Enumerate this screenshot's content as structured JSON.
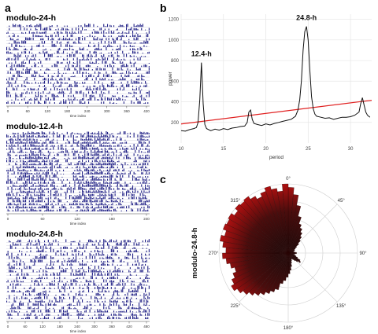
{
  "panels": {
    "a": "a",
    "b": "b",
    "c": "c"
  },
  "actograms": [
    {
      "title": "modulo-24-h",
      "xlabel": "time index",
      "ticks": [
        "0",
        "60",
        "120",
        "180",
        "240",
        "300",
        "360",
        "420"
      ],
      "bar_color": "#1f1f85"
    },
    {
      "title": "modulo-12.4-h",
      "xlabel": "time index",
      "ticks": [
        "0",
        "60",
        "120",
        "180",
        "240"
      ],
      "bar_color": "#1f1f85"
    },
    {
      "title": "modulo-24.8-h",
      "xlabel": "time index",
      "ticks": [
        "0",
        "60",
        "120",
        "180",
        "240",
        "300",
        "360",
        "420",
        "480"
      ],
      "bar_color": "#1f1f85"
    }
  ],
  "chart_data": [
    {
      "type": "line",
      "panel": "b",
      "xlabel": "period",
      "ylabel": "power",
      "xlim": [
        10,
        32.5
      ],
      "ylim": [
        0,
        1250
      ],
      "xticks": [
        "10",
        "15",
        "20",
        "25",
        "30"
      ],
      "xtick_values": [
        10,
        15,
        20,
        25,
        30
      ],
      "yticks": [
        "200",
        "400",
        "600",
        "800",
        "1000",
        "1200"
      ],
      "ytick_values": [
        200,
        400,
        600,
        800,
        1000,
        1200
      ],
      "grid": true,
      "annotations": [
        {
          "text": "12.4-h",
          "x": 12.4,
          "y": 780
        },
        {
          "text": "24.8-h",
          "x": 24.8,
          "y": 1130
        }
      ],
      "series": [
        {
          "color": "#111111",
          "x": [
            10.0,
            10.5,
            11.0,
            11.5,
            11.8,
            12.0,
            12.2,
            12.4,
            12.6,
            12.8,
            13.0,
            13.5,
            14.0,
            14.5,
            15.0,
            15.5,
            16.0,
            16.5,
            17.0,
            17.5,
            17.8,
            18.0,
            18.2,
            18.4,
            18.6,
            19.0,
            19.5,
            20.0,
            20.5,
            21.0,
            21.5,
            22.0,
            22.5,
            23.0,
            23.5,
            23.8,
            24.0,
            24.2,
            24.4,
            24.6,
            24.8,
            25.0,
            25.2,
            25.4,
            25.6,
            25.8,
            26.0,
            26.5,
            27.0,
            27.5,
            28.0,
            28.5,
            29.0,
            29.5,
            30.0,
            30.5,
            31.0,
            31.2,
            31.4,
            31.6,
            31.8,
            32.0,
            32.3
          ],
          "values": [
            120,
            115,
            130,
            140,
            150,
            200,
            420,
            780,
            380,
            180,
            140,
            120,
            135,
            125,
            140,
            130,
            145,
            150,
            160,
            165,
            200,
            300,
            320,
            230,
            190,
            180,
            170,
            185,
            175,
            190,
            200,
            210,
            220,
            230,
            260,
            320,
            420,
            600,
            900,
            1080,
            1130,
            1000,
            700,
            450,
            330,
            280,
            260,
            250,
            240,
            245,
            230,
            240,
            250,
            250,
            255,
            270,
            300,
            380,
            440,
            370,
            300,
            270,
            250
          ]
        }
      ],
      "threshold": {
        "color": "#e02020",
        "x": [
          10,
          32.5
        ],
        "values": [
          185,
          415
        ]
      }
    },
    {
      "type": "polar-bar",
      "panel": "c",
      "ylabel": "modulo-24.8-h",
      "angle_labels": [
        "0°",
        "45°",
        "90°",
        "135°",
        "180°",
        "225°",
        "270°",
        "315°"
      ],
      "angle_ticks": [
        0,
        45,
        90,
        135,
        180,
        225,
        270,
        315
      ],
      "grid": true,
      "colors": {
        "outer": "#b01010",
        "inner": "#1a0a0a"
      },
      "bins_deg": [
        0,
        5,
        10,
        15,
        20,
        25,
        30,
        35,
        40,
        45,
        50,
        55,
        60,
        65,
        70,
        75,
        80,
        85,
        90,
        95,
        100,
        105,
        110,
        115,
        120,
        125,
        130,
        135,
        140,
        145,
        150,
        155,
        160,
        165,
        170,
        175,
        180,
        185,
        190,
        195,
        200,
        205,
        210,
        215,
        220,
        225,
        230,
        235,
        240,
        245,
        250,
        255,
        260,
        265,
        270,
        275,
        280,
        285,
        290,
        295,
        300,
        305,
        310,
        315,
        320,
        325,
        330,
        335,
        340,
        345,
        350,
        355
      ],
      "values": [
        0.95,
        0.85,
        0.7,
        0.55,
        0.45,
        0.4,
        0.35,
        0.3,
        0.25,
        0.2,
        0.15,
        0.12,
        0.1,
        0.1,
        0.08,
        0.08,
        0.1,
        0.12,
        0.12,
        0.1,
        0.08,
        0.1,
        0.12,
        0.15,
        0.2,
        0.22,
        0.18,
        0.15,
        0.12,
        0.1,
        0.1,
        0.12,
        0.15,
        0.2,
        0.25,
        0.3,
        0.35,
        0.4,
        0.45,
        0.55,
        0.6,
        0.65,
        0.7,
        0.75,
        0.8,
        0.85,
        0.9,
        0.95,
        0.9,
        0.85,
        0.8,
        0.85,
        0.9,
        0.95,
        0.9,
        0.95,
        1.0,
        0.95,
        1.0,
        0.98,
        1.0,
        0.95,
        1.0,
        0.98,
        1.0,
        0.95,
        0.9,
        0.95,
        1.0,
        0.95,
        0.9,
        1.0
      ]
    }
  ]
}
